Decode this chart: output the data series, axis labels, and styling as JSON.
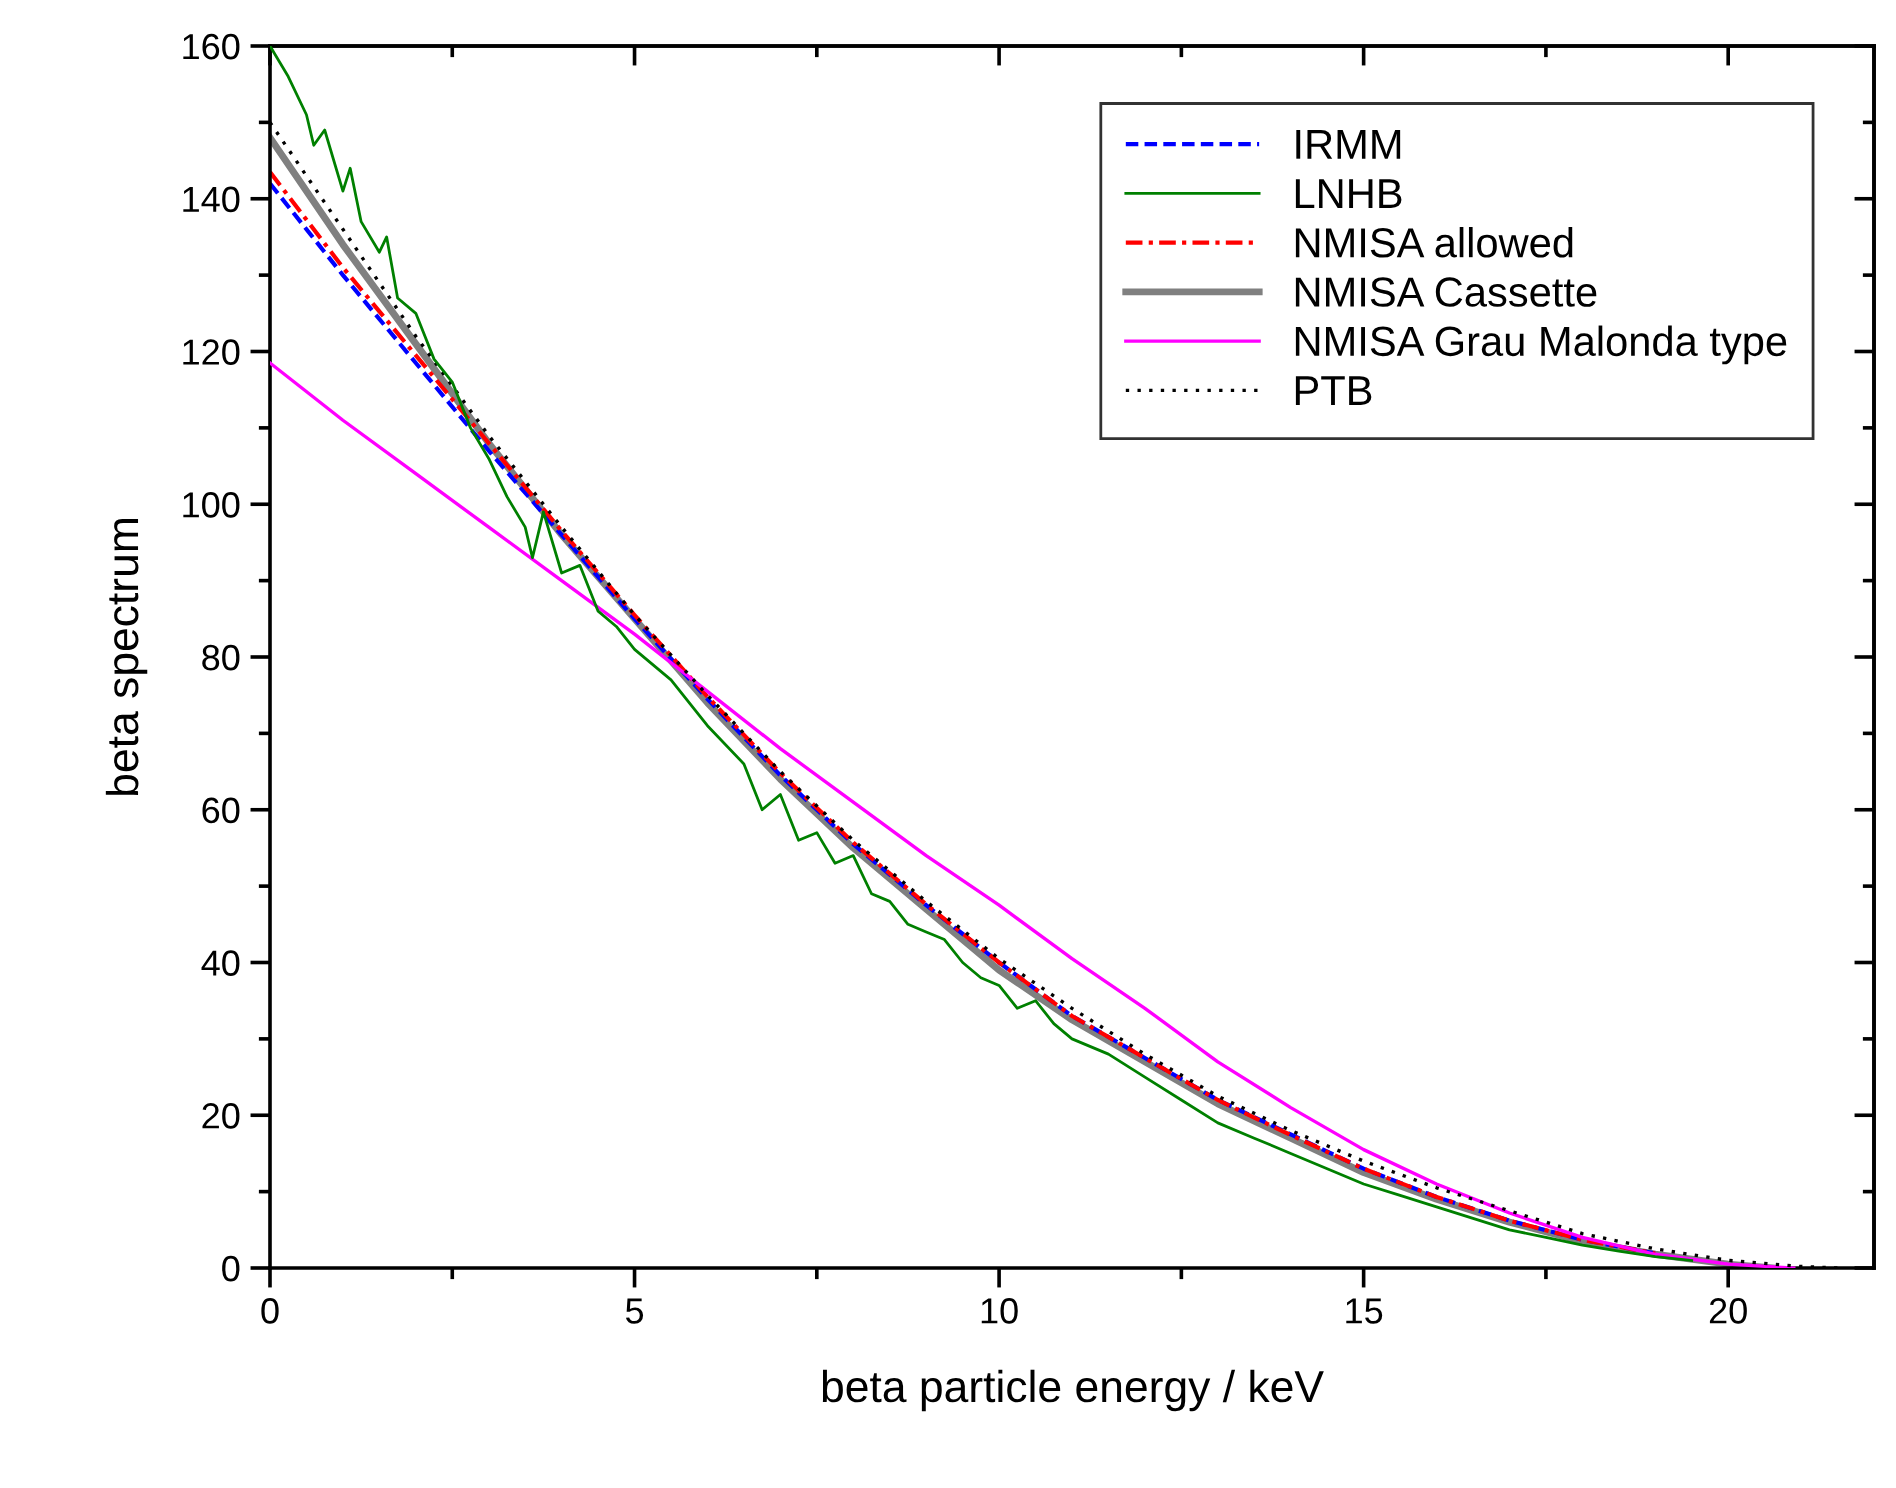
{
  "chart_data": {
    "type": "line",
    "xlabel": "beta particle energy / keV",
    "ylabel": "beta spectrum",
    "xlim": [
      0,
      22
    ],
    "ylim": [
      0,
      160
    ],
    "xticks": [
      0,
      {
        "value": 2.5,
        "label": null
      },
      5,
      {
        "value": 7.5,
        "label": null
      },
      10,
      {
        "value": 12.5,
        "label": null
      },
      15,
      {
        "value": 17.5,
        "label": null
      },
      20
    ],
    "yticks": [
      0,
      {
        "value": 10,
        "label": null
      },
      20,
      {
        "value": 30,
        "label": null
      },
      40,
      {
        "value": 50,
        "label": null
      },
      60,
      {
        "value": 70,
        "label": null
      },
      80,
      {
        "value": 90,
        "label": null
      },
      100,
      {
        "value": 110,
        "label": null
      },
      120,
      {
        "value": 130,
        "label": null
      },
      140,
      {
        "value": 150,
        "label": null
      },
      160
    ],
    "grid": false,
    "legend": "top right",
    "marker": "none",
    "series": [
      {
        "name": "IRMM",
        "color": "#0000ff",
        "line_style": "dashed",
        "x": [
          0,
          1,
          2,
          3,
          4,
          5,
          6,
          7,
          8,
          9,
          10,
          11,
          12,
          13,
          14,
          15,
          16,
          17,
          18,
          19
        ],
        "values": [
          142,
          130,
          118.5,
          107,
          96,
          85,
          74.5,
          64.5,
          55.5,
          47.5,
          40,
          33,
          27.5,
          22,
          17.5,
          13,
          9.3,
          6.2,
          3.7,
          1.9
        ]
      },
      {
        "name": "LNHB",
        "color": "#008000",
        "line_style": "solid",
        "x": [
          0,
          0.25,
          0.5,
          0.6,
          0.75,
          1,
          1.1,
          1.25,
          1.5,
          1.6,
          1.75,
          2,
          2.25,
          2.5,
          2.75,
          3,
          3.25,
          3.5,
          3.6,
          3.75,
          4,
          4.25,
          4.5,
          4.75,
          5,
          5.5,
          6,
          6.5,
          6.75,
          7,
          7.25,
          7.5,
          7.75,
          8,
          8.25,
          8.5,
          8.75,
          9,
          9.25,
          9.5,
          9.75,
          10,
          10.25,
          10.5,
          10.75,
          11,
          11.5,
          12,
          12.5,
          13,
          13.5,
          14,
          14.5,
          15,
          15.5,
          16,
          16.5,
          17,
          17.5,
          18,
          18.5,
          19,
          19.5
        ],
        "values": [
          160,
          156,
          151,
          147,
          149,
          141,
          144,
          137,
          133,
          135,
          127,
          125,
          119,
          116,
          110,
          106,
          101,
          97,
          93,
          99,
          91,
          92,
          86,
          84,
          81,
          77,
          71,
          66,
          60,
          62,
          56,
          57,
          53,
          54,
          49,
          48,
          45,
          44,
          43,
          40,
          38,
          37,
          34,
          35,
          32,
          30,
          28,
          25,
          22,
          19,
          17,
          15,
          13,
          11,
          9.5,
          8,
          6.5,
          5,
          4,
          3,
          2.2,
          1.5,
          1
        ]
      },
      {
        "name": "NMISA allowed",
        "color": "#ff0000",
        "line_style": "dashdot",
        "x": [
          0,
          1,
          2,
          3,
          4,
          5,
          6,
          7,
          8,
          9,
          10,
          11,
          12,
          13,
          14,
          15,
          16,
          17,
          18,
          19
        ],
        "values": [
          143.5,
          131,
          119.5,
          108,
          96.5,
          85.5,
          74.8,
          64.8,
          55.7,
          47.6,
          40,
          33,
          27.5,
          22,
          17.4,
          13,
          9.3,
          6.2,
          3.7,
          1.9
        ]
      },
      {
        "name": "NMISA Cassette",
        "color": "#808080",
        "line_style": "solid",
        "x": [
          0,
          1,
          2,
          3,
          4,
          5,
          6,
          7,
          8,
          9,
          10,
          11,
          12,
          13,
          14,
          15,
          16,
          17,
          18,
          19,
          20,
          20.6
        ],
        "values": [
          148,
          134,
          121,
          108,
          96,
          85,
          74,
          64,
          55,
          47,
          39,
          32.5,
          27,
          21.5,
          17,
          12.5,
          9,
          6,
          3.5,
          1.8,
          0.5,
          0
        ]
      },
      {
        "name": "NMISA Grau Malonda type",
        "color": "#ff00ff",
        "line_style": "solid",
        "x": [
          0,
          1,
          2,
          3,
          4,
          5,
          6,
          7,
          8,
          9,
          10,
          11,
          12,
          13,
          14,
          15,
          16,
          17,
          18,
          19,
          20,
          20.9
        ],
        "values": [
          118.5,
          111,
          104,
          97,
          90,
          83,
          75.5,
          68,
          61,
          54,
          47.5,
          40.5,
          34,
          27,
          21,
          15.5,
          11,
          7.2,
          4,
          1.8,
          0.5,
          0
        ]
      },
      {
        "name": "PTB",
        "color": "#000000",
        "line_style": "dotted",
        "x": [
          0,
          1,
          2,
          3,
          4,
          5,
          6,
          7,
          8,
          9,
          10,
          11,
          12,
          13,
          14,
          15,
          16,
          17,
          18,
          19,
          20,
          21,
          21.5
        ],
        "values": [
          150,
          136,
          122,
          109,
          97,
          85.5,
          75,
          65,
          56,
          48,
          40.5,
          34,
          28,
          22.5,
          18,
          14,
          10.5,
          7.5,
          4.5,
          2.5,
          1,
          0.2,
          0
        ]
      }
    ]
  }
}
